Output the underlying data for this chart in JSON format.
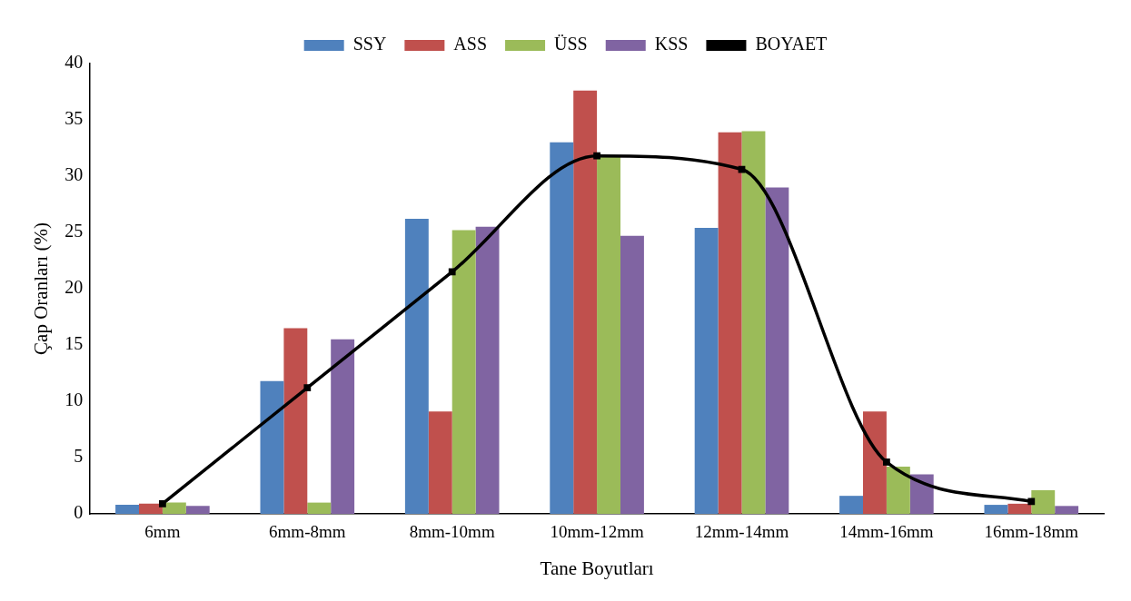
{
  "chart_data": {
    "type": "bar",
    "xlabel": "Tane Boyutları",
    "ylabel": "Çap Oranları (%)",
    "categories": [
      "6mm",
      "6mm-8mm",
      "8mm-10mm",
      "10mm-12mm",
      "12mm-14mm",
      "14mm-16mm",
      "16mm-18mm"
    ],
    "series": [
      {
        "name": "SSY",
        "color": "#4f81bd",
        "values": [
          0.8,
          11.8,
          26.2,
          33.0,
          25.4,
          1.6,
          0.8
        ]
      },
      {
        "name": "ASS",
        "color": "#c0504d",
        "values": [
          0.9,
          16.5,
          9.1,
          37.6,
          33.9,
          9.1,
          0.9
        ]
      },
      {
        "name": "ÜSS",
        "color": "#9bbb59",
        "values": [
          1.0,
          1.0,
          25.2,
          31.8,
          34.0,
          4.2,
          2.1
        ]
      },
      {
        "name": "KSS",
        "color": "#8064a2",
        "values": [
          0.7,
          15.5,
          25.5,
          24.7,
          29.0,
          3.5,
          0.7
        ]
      },
      {
        "name": "BOYAET",
        "type": "line",
        "color": "#000000",
        "marker": "square",
        "values": [
          0.9,
          11.2,
          21.5,
          31.8,
          30.6,
          4.6,
          1.1
        ]
      }
    ],
    "ylim": [
      0,
      40
    ],
    "yticks": [
      0,
      5,
      10,
      15,
      20,
      25,
      30,
      35,
      40
    ],
    "grid": false,
    "legend": "top"
  }
}
